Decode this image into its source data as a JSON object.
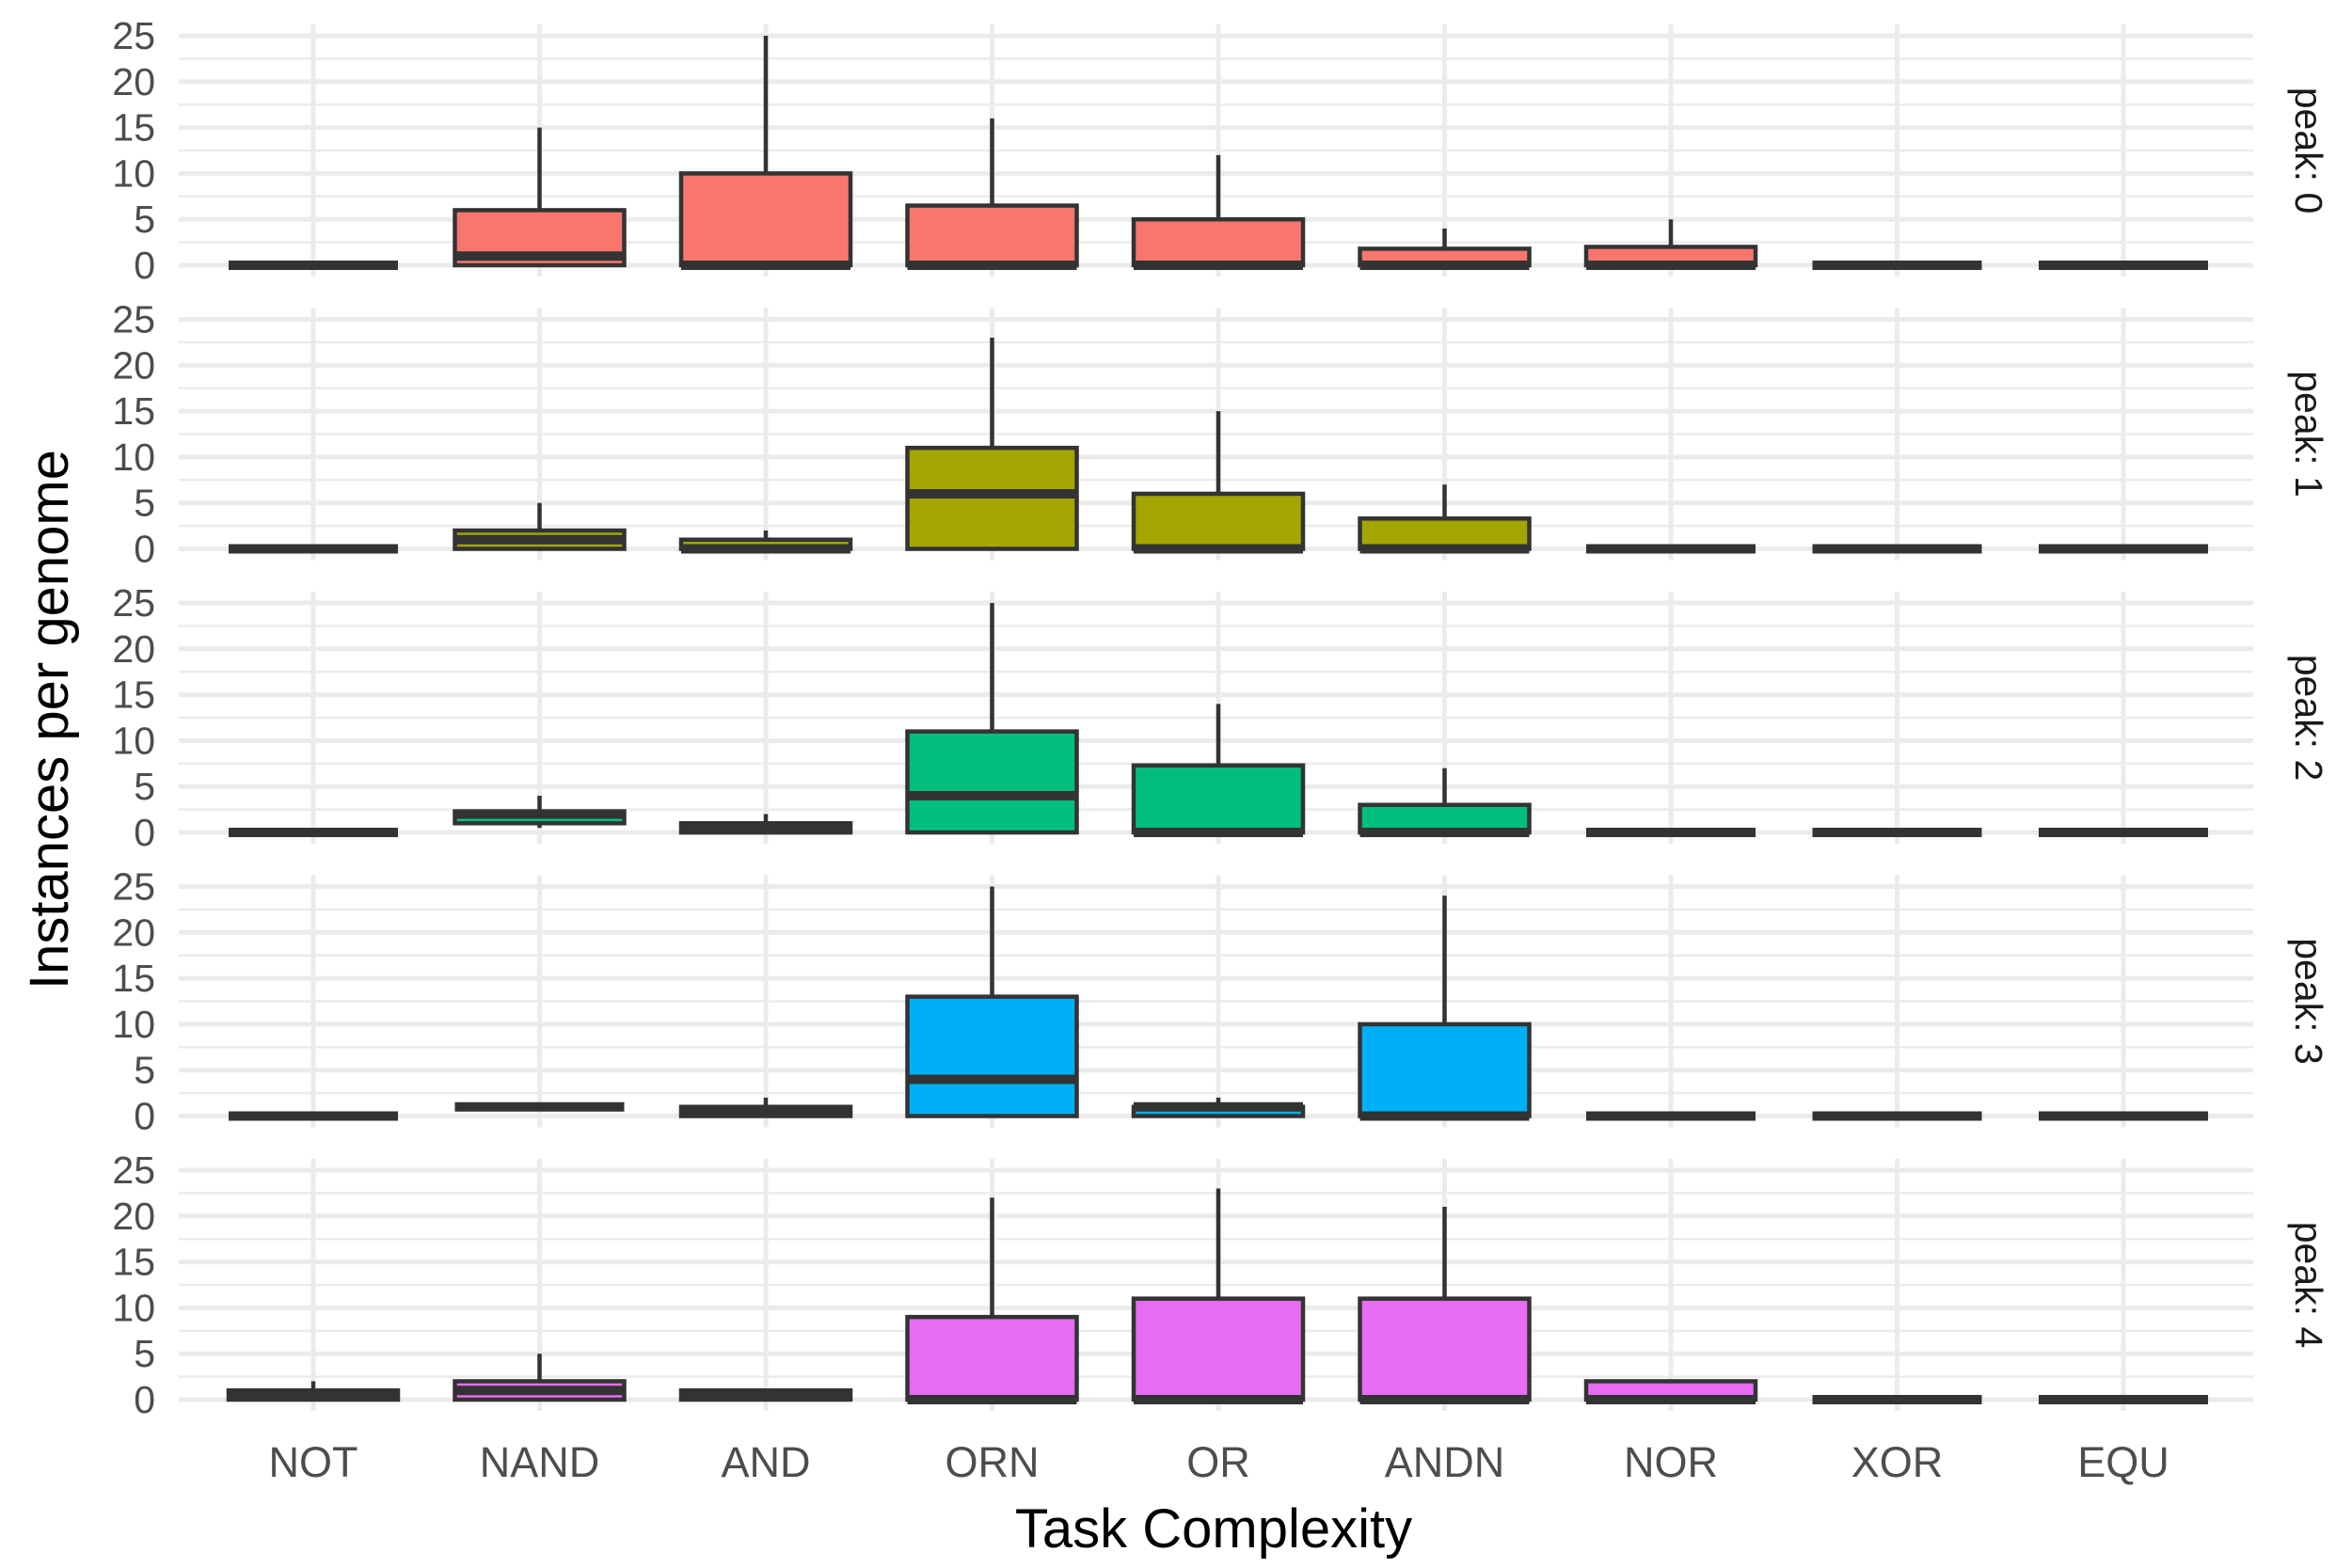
{
  "chart_data": {
    "type": "boxplot",
    "xlabel": "Task Complexity",
    "ylabel": "Instances per genome",
    "categories": [
      "NOT",
      "NAND",
      "AND",
      "ORN",
      "OR",
      "ANDN",
      "NOR",
      "XOR",
      "EQU"
    ],
    "ylim": [
      0,
      25
    ],
    "yticks": [
      0,
      5,
      10,
      15,
      20,
      25
    ],
    "grid": true,
    "legend": "none",
    "panels": [
      {
        "label": "peak: 0",
        "color": "#F8766D",
        "boxes": [
          {
            "min": 0,
            "q1": 0,
            "median": 0,
            "q3": 0,
            "max": 0
          },
          {
            "min": 0,
            "q1": 0,
            "median": 1,
            "q3": 6,
            "max": 15
          },
          {
            "min": 0,
            "q1": 0,
            "median": 0,
            "q3": 10,
            "max": 25
          },
          {
            "min": 0,
            "q1": 0,
            "median": 0,
            "q3": 6.5,
            "max": 16
          },
          {
            "min": 0,
            "q1": 0,
            "median": 0,
            "q3": 5,
            "max": 12
          },
          {
            "min": 0,
            "q1": 0,
            "median": 0,
            "q3": 1.8,
            "max": 4
          },
          {
            "min": 0,
            "q1": 0,
            "median": 0,
            "q3": 2,
            "max": 5
          },
          {
            "min": 0,
            "q1": 0,
            "median": 0,
            "q3": 0,
            "max": 0
          },
          {
            "min": 0,
            "q1": 0,
            "median": 0,
            "q3": 0,
            "max": 0
          }
        ]
      },
      {
        "label": "peak: 1",
        "color": "#A3A500",
        "boxes": [
          {
            "min": 0,
            "q1": 0,
            "median": 0,
            "q3": 0,
            "max": 0
          },
          {
            "min": 0,
            "q1": 0,
            "median": 1,
            "q3": 2,
            "max": 5
          },
          {
            "min": 0,
            "q1": 0,
            "median": 0,
            "q3": 1,
            "max": 2
          },
          {
            "min": 0,
            "q1": 0,
            "median": 6,
            "q3": 11,
            "max": 23
          },
          {
            "min": 0,
            "q1": 0,
            "median": 0,
            "q3": 6,
            "max": 15
          },
          {
            "min": 0,
            "q1": 0,
            "median": 0,
            "q3": 3.3,
            "max": 7
          },
          {
            "min": 0,
            "q1": 0,
            "median": 0,
            "q3": 0,
            "max": 0
          },
          {
            "min": 0,
            "q1": 0,
            "median": 0,
            "q3": 0,
            "max": 0
          },
          {
            "min": 0,
            "q1": 0,
            "median": 0,
            "q3": 0,
            "max": 0
          }
        ]
      },
      {
        "label": "peak: 2",
        "color": "#00BF7D",
        "boxes": [
          {
            "min": 0,
            "q1": 0,
            "median": 0,
            "q3": 0,
            "max": 0
          },
          {
            "min": 0.5,
            "q1": 1,
            "median": 2,
            "q3": 2.3,
            "max": 4
          },
          {
            "min": 0,
            "q1": 0,
            "median": 0.3,
            "q3": 1,
            "max": 2
          },
          {
            "min": 0,
            "q1": 0,
            "median": 4,
            "q3": 11,
            "max": 25
          },
          {
            "min": 0,
            "q1": 0,
            "median": 0,
            "q3": 7.3,
            "max": 14
          },
          {
            "min": 0,
            "q1": 0,
            "median": 0,
            "q3": 3,
            "max": 7
          },
          {
            "min": 0,
            "q1": 0,
            "median": 0,
            "q3": 0,
            "max": 0
          },
          {
            "min": 0,
            "q1": 0,
            "median": 0,
            "q3": 0,
            "max": 0
          },
          {
            "min": 0,
            "q1": 0,
            "median": 0,
            "q3": 0,
            "max": 0
          }
        ]
      },
      {
        "label": "peak: 3",
        "color": "#00B0F6",
        "boxes": [
          {
            "min": 0,
            "q1": 0,
            "median": 0,
            "q3": 0,
            "max": 0
          },
          {
            "min": 1,
            "q1": 1,
            "median": 1,
            "q3": 1,
            "max": 1
          },
          {
            "min": 0,
            "q1": 0,
            "median": 0.5,
            "q3": 1,
            "max": 2
          },
          {
            "min": 0,
            "q1": 0,
            "median": 4,
            "q3": 13,
            "max": 25
          },
          {
            "min": 0,
            "q1": 0,
            "median": 1,
            "q3": 1,
            "max": 2
          },
          {
            "min": 0,
            "q1": 0,
            "median": 0,
            "q3": 10,
            "max": 24
          },
          {
            "min": 0,
            "q1": 0,
            "median": 0,
            "q3": 0,
            "max": 0
          },
          {
            "min": 0,
            "q1": 0,
            "median": 0,
            "q3": 0,
            "max": 0
          },
          {
            "min": 0,
            "q1": 0,
            "median": 0,
            "q3": 0,
            "max": 0
          }
        ]
      },
      {
        "label": "peak: 4",
        "color": "#E76BF3",
        "boxes": [
          {
            "min": 0,
            "q1": 0,
            "median": 0.5,
            "q3": 1,
            "max": 2
          },
          {
            "min": 0,
            "q1": 0,
            "median": 1,
            "q3": 2,
            "max": 5
          },
          {
            "min": 0,
            "q1": 0,
            "median": 0.5,
            "q3": 1,
            "max": 1
          },
          {
            "min": 0,
            "q1": 0,
            "median": 0,
            "q3": 9,
            "max": 22
          },
          {
            "min": 0,
            "q1": 0,
            "median": 0,
            "q3": 11,
            "max": 23
          },
          {
            "min": 0,
            "q1": 0,
            "median": 0,
            "q3": 11,
            "max": 21
          },
          {
            "min": 0,
            "q1": 0,
            "median": 0,
            "q3": 2,
            "max": 2
          },
          {
            "min": 0,
            "q1": 0,
            "median": 0,
            "q3": 0,
            "max": 0
          },
          {
            "min": 0,
            "q1": 0,
            "median": 0,
            "q3": 0,
            "max": 0
          }
        ]
      }
    ]
  }
}
